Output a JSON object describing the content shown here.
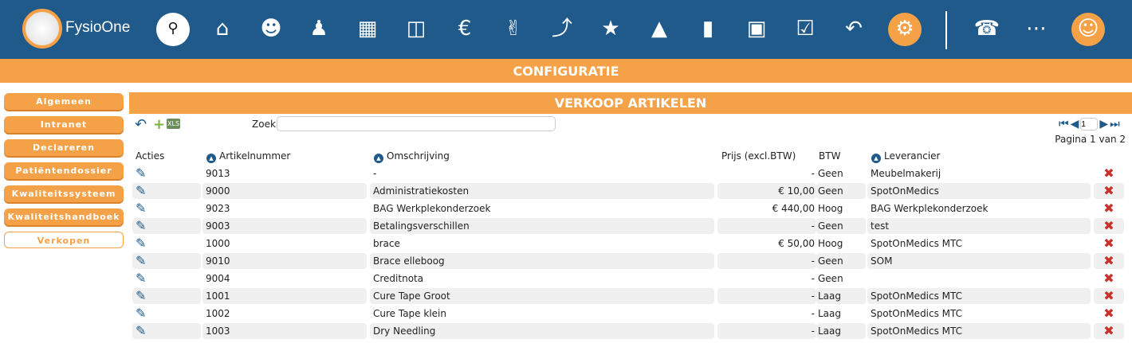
{
  "header": {
    "logo": "FysioOne",
    "nav_icons": [
      "search-icon",
      "home-icon",
      "add-patient-icon",
      "users-icon",
      "calendar-icon",
      "folder-icon",
      "finance-icon",
      "handshake-icon",
      "exercise-icon",
      "body-icon",
      "organization-icon",
      "stats-icon",
      "address-book-icon",
      "checklist-icon",
      "back-icon",
      "gear-icon"
    ],
    "right_icons": [
      "headset-icon",
      "more-icon",
      "user-icon"
    ]
  },
  "page_title": "CONFIGURATIE",
  "sidebar": {
    "items": [
      {
        "label": "Algemeen"
      },
      {
        "label": "Intranet"
      },
      {
        "label": "Declareren"
      },
      {
        "label": "Patiëntendossier"
      },
      {
        "label": "Kwaliteitssysteem"
      },
      {
        "label": "Kwaliteitshandboek"
      },
      {
        "label": "Verkopen",
        "active": true
      }
    ]
  },
  "panel": {
    "title": "VERKOOP ARTIKELEN",
    "search_label": "Zoek",
    "search_value": "",
    "page_input": "1",
    "page_info": "Pagina 1 van 2",
    "xls": "XLS"
  },
  "columns": {
    "acties": "Acties",
    "artikelnummer": "Artikelnummer",
    "omschrijving": "Omschrijving",
    "prijs": "Prijs (excl.BTW)",
    "btw": "BTW",
    "leverancier": "Leverancier"
  },
  "rows": [
    {
      "nr": "9013",
      "oms": "-",
      "prijs": "-",
      "btw": "Geen",
      "lev": "Meubelmakerij"
    },
    {
      "nr": "9000",
      "oms": "Administratiekosten",
      "prijs": "€ 10,00",
      "btw": "Geen",
      "lev": "SpotOnMedics"
    },
    {
      "nr": "9023",
      "oms": "BAG Werkplekonderzoek",
      "prijs": "€ 440,00",
      "btw": "Hoog",
      "lev": "BAG Werkplekonderzoek"
    },
    {
      "nr": "9003",
      "oms": "Betalingsverschillen",
      "prijs": "-",
      "btw": "Geen",
      "lev": "test"
    },
    {
      "nr": "1000",
      "oms": "brace",
      "prijs": "€ 50,00",
      "btw": "Hoog",
      "lev": "SpotOnMedics MTC"
    },
    {
      "nr": "9010",
      "oms": "Brace elleboog",
      "prijs": "-",
      "btw": "Geen",
      "lev": "SOM"
    },
    {
      "nr": "9004",
      "oms": "Creditnota",
      "prijs": "-",
      "btw": "Geen",
      "lev": ""
    },
    {
      "nr": "1001",
      "oms": "Cure Tape Groot",
      "prijs": "-",
      "btw": "Laag",
      "lev": "SpotOnMedics MTC"
    },
    {
      "nr": "1002",
      "oms": "Cure Tape klein",
      "prijs": "-",
      "btw": "Laag",
      "lev": "SpotOnMedics MTC"
    },
    {
      "nr": "1003",
      "oms": "Dry Needling",
      "prijs": "-",
      "btw": "Laag",
      "lev": "SpotOnMedics MTC"
    }
  ]
}
